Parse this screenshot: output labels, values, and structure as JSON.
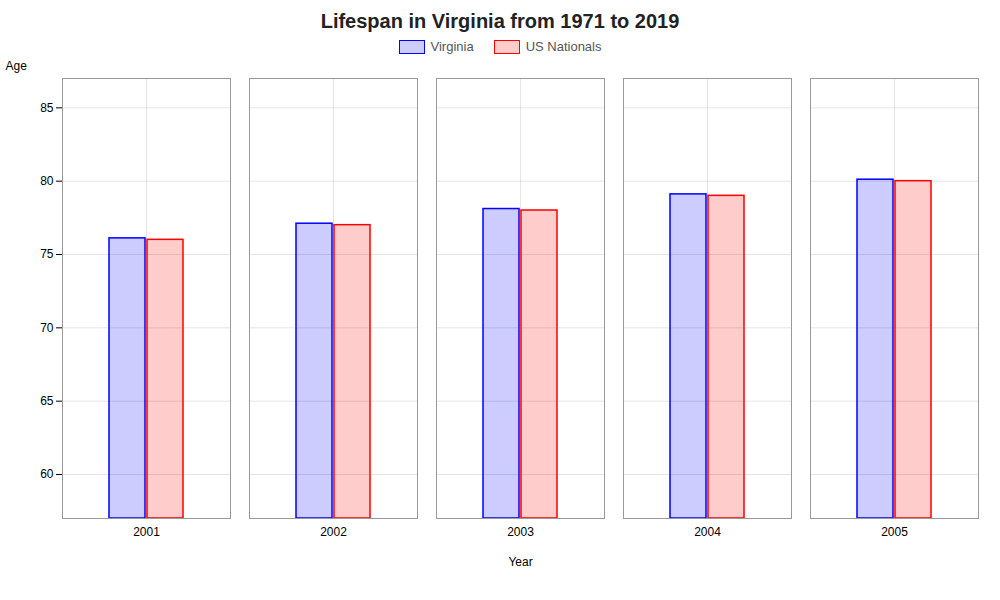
{
  "chart_data": {
    "type": "bar",
    "title": "Lifespan in Virginia from 1971 to 2019",
    "xlabel": "Year",
    "ylabel": "Age",
    "categories": [
      "2001",
      "2002",
      "2003",
      "2004",
      "2005"
    ],
    "series": [
      {
        "name": "Virginia",
        "color": "#0000ff",
        "values": [
          76.1,
          77.1,
          78.1,
          79.1,
          80.1
        ]
      },
      {
        "name": "US Nationals",
        "color": "#ff0000",
        "values": [
          76.0,
          77.0,
          78.0,
          79.0,
          80.0
        ]
      }
    ],
    "ylim": [
      57,
      87
    ],
    "yticks": [
      60,
      65,
      70,
      75,
      80,
      85
    ],
    "grid": true,
    "legend": "upper center"
  }
}
